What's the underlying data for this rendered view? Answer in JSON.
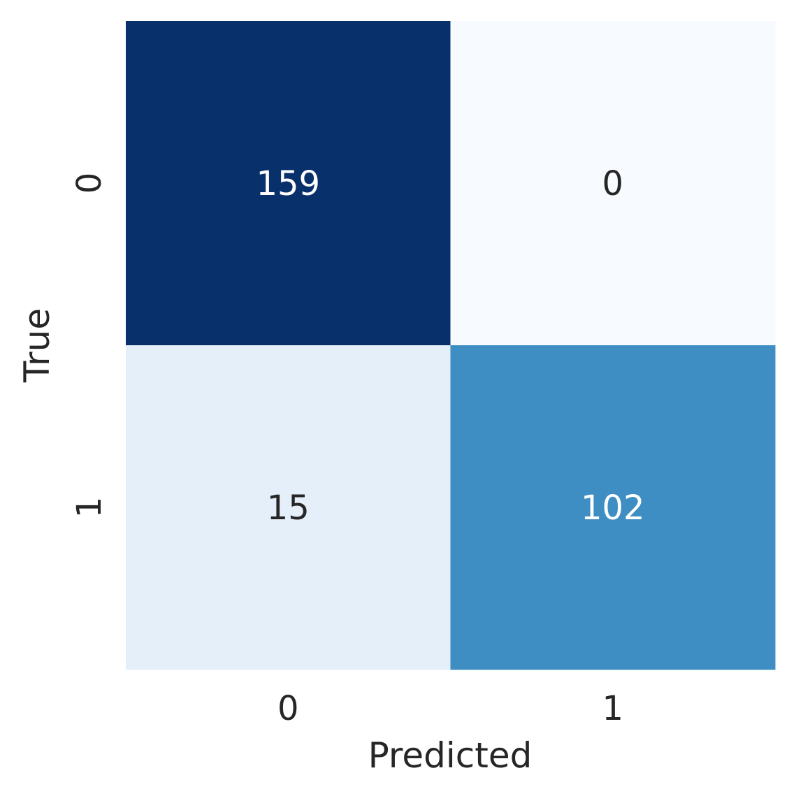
{
  "chart_data": {
    "type": "heatmap",
    "title": "",
    "xlabel": "Predicted",
    "ylabel": "True",
    "x_categories": [
      "0",
      "1"
    ],
    "y_categories": [
      "0",
      "1"
    ],
    "values": [
      [
        159,
        0
      ],
      [
        15,
        102
      ]
    ],
    "colormap": "Blues",
    "color_low": "#f7fbff",
    "color_high": "#08306b",
    "annotation_dark_text": "#262626",
    "annotation_light_text": "#ffffff",
    "grid": false,
    "colorbar": false
  }
}
